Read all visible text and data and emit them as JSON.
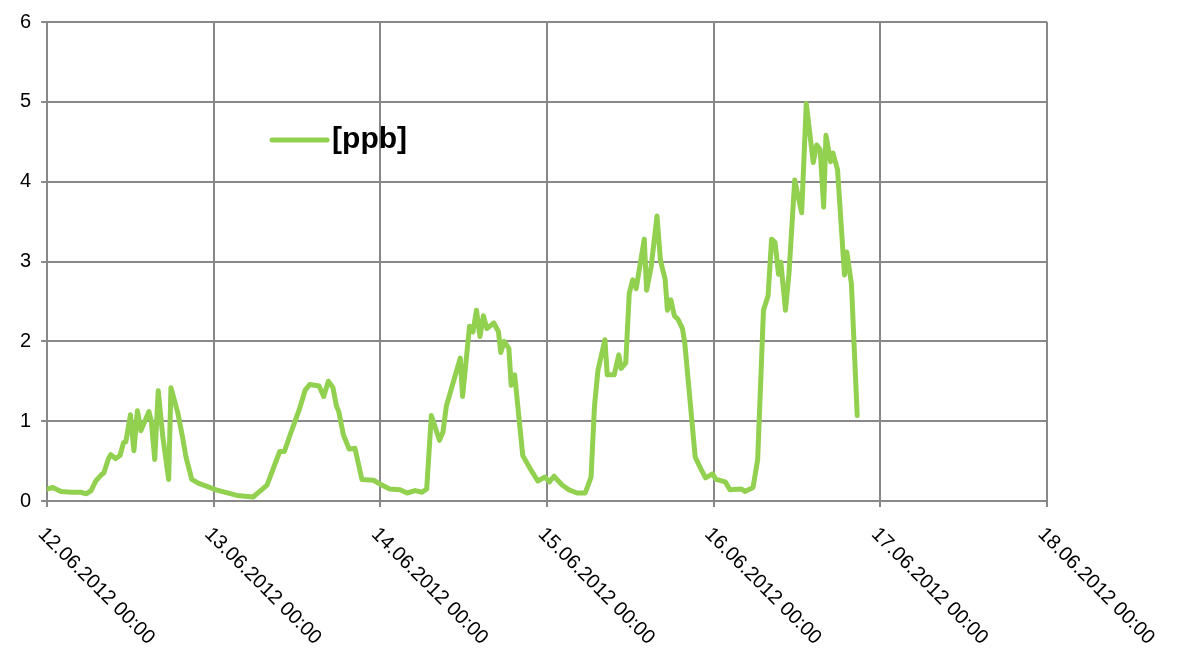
{
  "chart_data": {
    "type": "line",
    "legend": "top left",
    "grid": true,
    "marker": "none",
    "line_style": "solid",
    "xlim": [
      "2012-06-12T00:00",
      "2012-06-18T00:00"
    ],
    "xticks": [
      {
        "value": "2012-06-12T00:00",
        "label": "12.06.2012 00:00"
      },
      {
        "value": "2012-06-13T00:00",
        "label": "13.06.2012 00:00"
      },
      {
        "value": "2012-06-14T00:00",
        "label": "14.06.2012 00:00"
      },
      {
        "value": "2012-06-15T00:00",
        "label": "15.06.2012 00:00"
      },
      {
        "value": "2012-06-16T00:00",
        "label": "16.06.2012 00:00"
      },
      {
        "value": "2012-06-17T00:00",
        "label": "17.06.2012 00:00"
      },
      {
        "value": "2012-06-18T00:00",
        "label": "18.06.2012 00:00"
      }
    ],
    "ylim": [
      0,
      6
    ],
    "yticks": [
      0,
      1,
      2,
      3,
      4,
      5,
      6
    ],
    "x": [
      "2012-06-12T00:00",
      "2012-06-12T00:50",
      "2012-06-12T02:00",
      "2012-06-12T03:30",
      "2012-06-12T04:50",
      "2012-06-12T05:40",
      "2012-06-12T06:20",
      "2012-06-12T07:00",
      "2012-06-12T07:50",
      "2012-06-12T08:10",
      "2012-06-12T08:50",
      "2012-06-12T09:10",
      "2012-06-12T09:50",
      "2012-06-12T10:30",
      "2012-06-12T11:00",
      "2012-06-12T11:20",
      "2012-06-12T12:00",
      "2012-06-12T12:30",
      "2012-06-12T13:00",
      "2012-06-12T13:30",
      "2012-06-12T14:40",
      "2012-06-12T15:00",
      "2012-06-12T15:30",
      "2012-06-12T16:00",
      "2012-06-12T16:40",
      "2012-06-12T17:30",
      "2012-06-12T17:50",
      "2012-06-12T18:50",
      "2012-06-12T19:30",
      "2012-06-12T20:00",
      "2012-06-12T20:50",
      "2012-06-12T21:50",
      "2012-06-12T22:50",
      "2012-06-13T00:20",
      "2012-06-13T03:20",
      "2012-06-13T05:40",
      "2012-06-13T07:40",
      "2012-06-13T09:30",
      "2012-06-13T10:10",
      "2012-06-13T11:00",
      "2012-06-13T12:20",
      "2012-06-13T13:10",
      "2012-06-13T13:50",
      "2012-06-13T15:10",
      "2012-06-13T15:50",
      "2012-06-13T16:30",
      "2012-06-13T17:10",
      "2012-06-13T17:40",
      "2012-06-13T18:00",
      "2012-06-13T18:40",
      "2012-06-13T19:30",
      "2012-06-13T20:20",
      "2012-06-13T21:20",
      "2012-06-13T23:00",
      "2012-06-14T00:00",
      "2012-06-14T01:20",
      "2012-06-14T02:50",
      "2012-06-14T03:50",
      "2012-06-14T05:00",
      "2012-06-14T06:00",
      "2012-06-14T06:40",
      "2012-06-14T07:20",
      "2012-06-14T08:30",
      "2012-06-14T09:00",
      "2012-06-14T09:30",
      "2012-06-14T11:30",
      "2012-06-14T11:50",
      "2012-06-14T12:50",
      "2012-06-14T13:20",
      "2012-06-14T13:50",
      "2012-06-14T14:20",
      "2012-06-14T14:50",
      "2012-06-14T15:20",
      "2012-06-14T16:20",
      "2012-06-14T17:00",
      "2012-06-14T17:20",
      "2012-06-14T17:50",
      "2012-06-14T18:30",
      "2012-06-14T18:50",
      "2012-06-14T19:20",
      "2012-06-14T20:30",
      "2012-06-14T21:40",
      "2012-06-14T22:40",
      "2012-06-14T23:40",
      "2012-06-15T00:20",
      "2012-06-15T01:00",
      "2012-06-15T02:10",
      "2012-06-15T03:10",
      "2012-06-15T04:20",
      "2012-06-15T05:30",
      "2012-06-15T06:20",
      "2012-06-15T06:50",
      "2012-06-15T07:20",
      "2012-06-15T08:20",
      "2012-06-15T08:40",
      "2012-06-15T09:40",
      "2012-06-15T10:20",
      "2012-06-15T10:40",
      "2012-06-15T11:20",
      "2012-06-15T11:50",
      "2012-06-15T12:20",
      "2012-06-15T12:50",
      "2012-06-15T14:00",
      "2012-06-15T14:20",
      "2012-06-15T15:00",
      "2012-06-15T15:50",
      "2012-06-15T16:20",
      "2012-06-15T17:00",
      "2012-06-15T17:20",
      "2012-06-15T17:50",
      "2012-06-15T18:20",
      "2012-06-15T18:50",
      "2012-06-15T19:30",
      "2012-06-15T19:50",
      "2012-06-15T21:20",
      "2012-06-15T22:10",
      "2012-06-15T22:50",
      "2012-06-15T23:50",
      "2012-06-16T00:20",
      "2012-06-16T01:40",
      "2012-06-16T02:20",
      "2012-06-16T04:00",
      "2012-06-16T04:30",
      "2012-06-16T05:40",
      "2012-06-16T06:20",
      "2012-06-16T07:10",
      "2012-06-16T07:50",
      "2012-06-16T08:20",
      "2012-06-16T08:50",
      "2012-06-16T09:20",
      "2012-06-16T09:40",
      "2012-06-16T10:20",
      "2012-06-16T10:50",
      "2012-06-16T11:40",
      "2012-06-16T12:40",
      "2012-06-16T13:20",
      "2012-06-16T14:20",
      "2012-06-16T14:50",
      "2012-06-16T15:20",
      "2012-06-16T15:50",
      "2012-06-16T16:10",
      "2012-06-16T16:50",
      "2012-06-16T17:10",
      "2012-06-16T17:50",
      "2012-06-16T18:50",
      "2012-06-16T19:10",
      "2012-06-16T19:50",
      "2012-06-16T20:40"
    ],
    "series": [
      {
        "name": "[ppb]",
        "color": "#92d050",
        "values": [
          0.15,
          0.17,
          0.12,
          0.11,
          0.11,
          0.09,
          0.13,
          0.25,
          0.33,
          0.35,
          0.53,
          0.58,
          0.53,
          0.57,
          0.73,
          0.74,
          1.08,
          0.63,
          1.13,
          0.88,
          1.12,
          1.0,
          0.52,
          1.38,
          0.8,
          0.27,
          1.42,
          1.1,
          0.8,
          0.55,
          0.27,
          0.22,
          0.19,
          0.14,
          0.07,
          0.05,
          0.2,
          0.62,
          0.62,
          0.83,
          1.15,
          1.39,
          1.46,
          1.44,
          1.31,
          1.5,
          1.42,
          1.19,
          1.12,
          0.83,
          0.65,
          0.66,
          0.27,
          0.26,
          0.21,
          0.15,
          0.14,
          0.1,
          0.13,
          0.11,
          0.15,
          1.07,
          0.76,
          0.86,
          1.19,
          1.79,
          1.31,
          2.19,
          2.12,
          2.39,
          2.06,
          2.32,
          2.16,
          2.23,
          2.12,
          1.86,
          2.0,
          1.91,
          1.45,
          1.58,
          0.57,
          0.39,
          0.25,
          0.3,
          0.24,
          0.31,
          0.2,
          0.14,
          0.1,
          0.1,
          0.3,
          1.19,
          1.64,
          2.02,
          1.58,
          1.58,
          1.83,
          1.66,
          1.73,
          2.6,
          2.77,
          2.66,
          3.28,
          2.64,
          2.94,
          3.57,
          3.01,
          2.78,
          2.39,
          2.52,
          2.32,
          2.28,
          2.16,
          1.98,
          0.55,
          0.4,
          0.29,
          0.34,
          0.27,
          0.24,
          0.14,
          0.15,
          0.12,
          0.17,
          0.52,
          2.39,
          2.57,
          3.28,
          3.24,
          2.84,
          2.99,
          2.39,
          2.84,
          4.02,
          3.61,
          4.98,
          4.24,
          4.46,
          4.4,
          3.68,
          4.58,
          4.25,
          4.36,
          4.15,
          2.83,
          3.12,
          2.72,
          1.07
        ]
      }
    ]
  }
}
